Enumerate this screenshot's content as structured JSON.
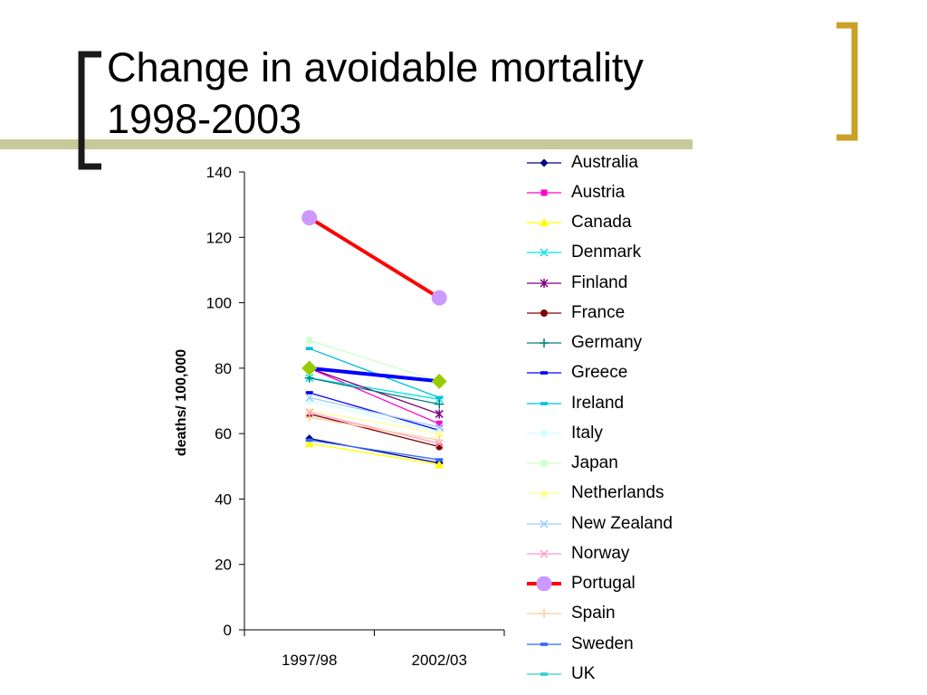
{
  "slide": {
    "title_line1": "Change in avoidable mortality",
    "title_line2": "1998-2003",
    "accent_colors": {
      "band": "#c8c99a",
      "bracket_dark": "#1a1a1a",
      "bracket_gold": "#c9a227"
    }
  },
  "chart_data": {
    "type": "line",
    "title": "",
    "xlabel": "",
    "ylabel": "deaths/ 100,000",
    "categories": [
      "1997/98",
      "2002/03"
    ],
    "ylim": [
      0,
      140
    ],
    "yticks": [
      0,
      20,
      40,
      60,
      80,
      100,
      120,
      140
    ],
    "grid": false,
    "legend_position": "right",
    "series": [
      {
        "name": "Australia",
        "values": [
          58.5,
          51
        ],
        "color": "#000080",
        "marker": "diamond",
        "emphasis": false
      },
      {
        "name": "Austria",
        "values": [
          80,
          63
        ],
        "color": "#ff00cc",
        "marker": "square",
        "emphasis": false
      },
      {
        "name": "Canada",
        "values": [
          57,
          50.5
        ],
        "color": "#ffff00",
        "marker": "triangle",
        "emphasis": false
      },
      {
        "name": "Denmark",
        "values": [
          77,
          70.5
        ],
        "color": "#00e5e5",
        "marker": "x",
        "emphasis": false
      },
      {
        "name": "Finland",
        "values": [
          80,
          66
        ],
        "color": "#800080",
        "marker": "star",
        "emphasis": false
      },
      {
        "name": "France",
        "values": [
          66,
          56
        ],
        "color": "#800000",
        "marker": "circle",
        "emphasis": false
      },
      {
        "name": "Germany",
        "values": [
          77,
          69
        ],
        "color": "#008080",
        "marker": "plus",
        "emphasis": false
      },
      {
        "name": "Greece",
        "values": [
          72.5,
          61
        ],
        "color": "#0000ff",
        "marker": "dash",
        "emphasis": false
      },
      {
        "name": "Ireland",
        "values": [
          86,
          71
        ],
        "color": "#00c0e0",
        "marker": "dash",
        "emphasis": false
      },
      {
        "name": "Italy",
        "values": [
          70,
          60.5
        ],
        "color": "#ccffff",
        "marker": "diamond",
        "emphasis": false
      },
      {
        "name": "Japan",
        "values": [
          88.5,
          76
        ],
        "color": "#ccffcc",
        "marker": "square",
        "emphasis": false
      },
      {
        "name": "Netherlands",
        "values": [
          67,
          60
        ],
        "color": "#ffff99",
        "marker": "triangle",
        "emphasis": false
      },
      {
        "name": "New Zealand",
        "values": [
          71,
          62
        ],
        "color": "#99ccff",
        "marker": "x",
        "emphasis": false
      },
      {
        "name": "Norway",
        "values": [
          66.5,
          57
        ],
        "color": "#ff99cc",
        "marker": "x",
        "emphasis": false
      },
      {
        "name": "Portugal",
        "values": [
          126,
          101.5
        ],
        "color": "#ff0000",
        "marker": "bigcircle",
        "marker_color": "#cc99ff",
        "emphasis": true
      },
      {
        "name": "Spain",
        "values": [
          65,
          58
        ],
        "color": "#ffcc99",
        "marker": "plus",
        "emphasis": false
      },
      {
        "name": "Sweden",
        "values": [
          58,
          52
        ],
        "color": "#3366ff",
        "marker": "dash",
        "emphasis": false
      },
      {
        "name": "UK",
        "values": [
          80,
          76
        ],
        "color": "#0000ff",
        "marker": "bigdiamond",
        "marker_color": "#99cc00",
        "legend_color": "#33cccc",
        "emphasis": true
      }
    ]
  }
}
